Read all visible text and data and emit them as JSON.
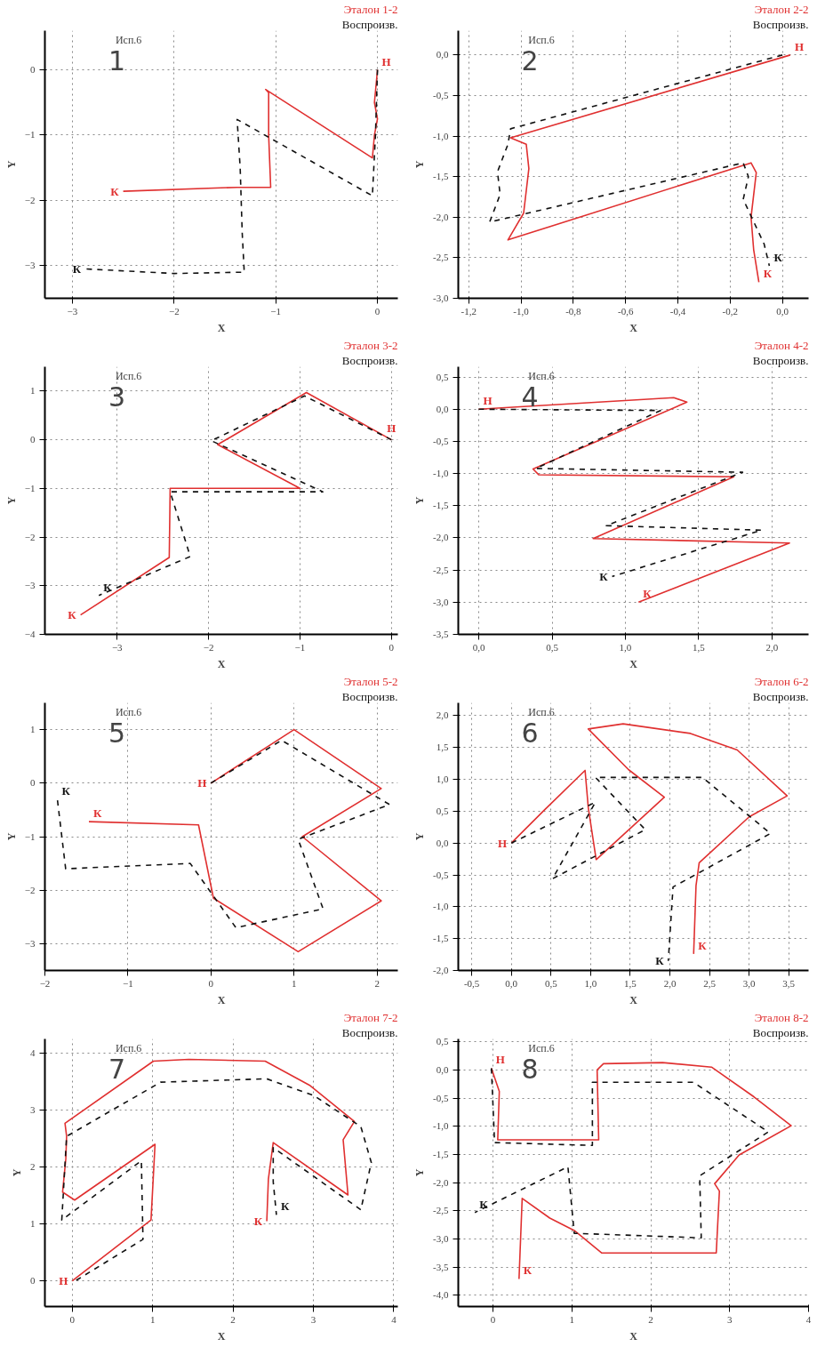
{
  "chart_data": [
    {
      "type": "line",
      "xlabel": "X",
      "ylabel": "Y",
      "xlim": [
        -3.27,
        0.2
      ],
      "ylim": [
        -3.5,
        0.6
      ],
      "xticks": [
        -3,
        -2,
        -1,
        0
      ],
      "yticks": [
        0,
        -1,
        -2,
        -3
      ],
      "grid": true,
      "legend": "top right",
      "marker": "none",
      "series": [
        {
          "name": "Эталон 1-2",
          "color": "#e03030",
          "line_style": "solid",
          "x": [
            0,
            -0.03,
            0.0,
            -0.03,
            -0.05,
            -1.1,
            -1.07,
            -1.07,
            -1.05,
            -1.38,
            -2.5
          ],
          "values": [
            0,
            -0.5,
            -0.75,
            -1.0,
            -1.35,
            -0.3,
            -0.35,
            -1.0,
            -1.8,
            -1.8,
            -1.86
          ]
        },
        {
          "name": "Воспроизв.",
          "color": "#111111",
          "line_style": "dashed",
          "x": [
            0,
            -0.02,
            -0.05,
            -1.38,
            -1.35,
            -1.33,
            -1.31,
            -2.0,
            -2.87
          ],
          "values": [
            0,
            -1.0,
            -1.93,
            -0.76,
            -1.5,
            -2.5,
            -3.1,
            -3.12,
            -3.05
          ]
        }
      ],
      "annotations": [
        "Исп.6",
        "1",
        {
          "text": "Н",
          "x": 0,
          "y": 0
        },
        {
          "text": "К",
          "x": -2.5,
          "y": -1.86
        },
        {
          "text": "К",
          "x": -2.87,
          "y": -3.05
        }
      ]
    },
    {
      "type": "line",
      "xlabel": "X",
      "ylabel": "Y",
      "xlim": [
        -1.24,
        0.1
      ],
      "ylim": [
        -3.0,
        0.3
      ],
      "xticks": [
        {
          "value": -1.2,
          "label": "-1,2"
        },
        {
          "value": -1.0,
          "label": "-1,0"
        },
        {
          "value": -0.8,
          "label": "-0,8"
        },
        {
          "value": -0.6,
          "label": "-0,6"
        },
        {
          "value": -0.4,
          "label": "-0,4"
        },
        {
          "value": -0.2,
          "label": "-0,2"
        },
        {
          "value": 0,
          "label": "0,0"
        }
      ],
      "yticks": [
        {
          "value": 0,
          "label": "0,0"
        },
        {
          "value": -0.5,
          "label": "-0,5"
        },
        {
          "value": -1.0,
          "label": "-1,0"
        },
        {
          "value": -1.5,
          "label": "-1,5"
        },
        {
          "value": -2.0,
          "label": "-2,0"
        },
        {
          "value": -2.5,
          "label": "-2,5"
        },
        {
          "value": -3.0,
          "label": "-3,0"
        }
      ],
      "grid": true,
      "legend": "top right",
      "marker": "none",
      "series": [
        {
          "name": "Эталон 2-2",
          "color": "#e03030",
          "line_style": "solid",
          "x": [
            0.03,
            -1.04,
            -0.98,
            -0.97,
            -0.99,
            -1.05,
            -0.12,
            -0.1,
            -0.12,
            -0.11,
            -0.09
          ],
          "values": [
            0,
            -1.02,
            -1.1,
            -1.4,
            -1.95,
            -2.28,
            -1.33,
            -1.45,
            -2.0,
            -2.4,
            -2.8
          ]
        },
        {
          "name": "Воспроизв.",
          "color": "#111111",
          "line_style": "dashed",
          "x": [
            0.0,
            -1.04,
            -1.05,
            -1.09,
            -1.08,
            -1.12,
            -0.15,
            -0.13,
            -0.15,
            -0.07,
            -0.05
          ],
          "values": [
            0,
            -0.91,
            -1.1,
            -1.44,
            -1.72,
            -2.06,
            -1.33,
            -1.5,
            -1.78,
            -2.33,
            -2.6
          ]
        }
      ],
      "annotations": [
        "Исп.6",
        "2",
        {
          "text": "Н",
          "x": 0.03,
          "y": 0
        },
        {
          "text": "К",
          "x": -0.09,
          "y": -2.8
        },
        {
          "text": "К",
          "x": -0.05,
          "y": -2.6
        }
      ]
    },
    {
      "type": "line",
      "xlabel": "X",
      "ylabel": "Y",
      "xlim": [
        -3.79,
        0.07
      ],
      "ylim": [
        -4,
        1.5
      ],
      "xticks": [
        -3,
        -2,
        -1,
        0
      ],
      "yticks": [
        1,
        0,
        -1,
        -2,
        -3,
        -4
      ],
      "grid": true,
      "legend": "top right",
      "marker": "none",
      "series": [
        {
          "name": "Эталон 3-2",
          "color": "#e03030",
          "line_style": "solid",
          "x": [
            0,
            -0.93,
            -1.9,
            -1.0,
            -2.42,
            -2.43,
            -3.4
          ],
          "values": [
            0,
            0.97,
            -0.1,
            -1.0,
            -1.0,
            -2.42,
            -3.6
          ]
        },
        {
          "name": "Воспроизв.",
          "color": "#111111",
          "line_style": "dashed",
          "x": [
            0,
            -0.95,
            -1.97,
            -0.75,
            -2.42,
            -2.2,
            -3.2
          ],
          "values": [
            0,
            0.9,
            -0.02,
            -1.07,
            -1.07,
            -2.4,
            -3.2
          ]
        }
      ],
      "annotations": [
        "Исп.6",
        "3",
        {
          "text": "Н",
          "x": 0,
          "y": 0
        },
        {
          "text": "К",
          "x": -3.4,
          "y": -3.6
        },
        {
          "text": "К",
          "x": -3.2,
          "y": -3.2
        }
      ]
    },
    {
      "type": "line",
      "xlabel": "X",
      "ylabel": "Y",
      "xlim": [
        -0.14,
        2.25
      ],
      "ylim": [
        -3.5,
        0.66
      ],
      "xticks": [
        {
          "value": 0,
          "label": "0,0"
        },
        {
          "value": 0.5,
          "label": "0,5"
        },
        {
          "value": 1.0,
          "label": "1,0"
        },
        {
          "value": 1.5,
          "label": "1,5"
        },
        {
          "value": 2.0,
          "label": "2,0"
        }
      ],
      "yticks": [
        {
          "value": 0.5,
          "label": "0,5"
        },
        {
          "value": 0,
          "label": "0,0"
        },
        {
          "value": -0.5,
          "label": "-0,5"
        },
        {
          "value": -1.0,
          "label": "-1,0"
        },
        {
          "value": -1.5,
          "label": "-1,5"
        },
        {
          "value": -2.0,
          "label": "-2,0"
        },
        {
          "value": -2.5,
          "label": "-2,5"
        },
        {
          "value": -3.0,
          "label": "-3,0"
        },
        {
          "value": -3.5,
          "label": "-3,5"
        }
      ],
      "grid": true,
      "legend": "top right",
      "marker": "none",
      "series": [
        {
          "name": "Эталон 4-2",
          "color": "#e03030",
          "line_style": "solid",
          "x": [
            0,
            1.33,
            1.42,
            0.37,
            0.41,
            1.74,
            0.78,
            2.12,
            1.09
          ],
          "values": [
            0,
            0.18,
            0.11,
            -0.93,
            -1.02,
            -1.05,
            -2.01,
            -2.08,
            -3.0
          ]
        },
        {
          "name": "Воспроизв.",
          "color": "#111111",
          "line_style": "dashed",
          "x": [
            0,
            1.24,
            0.39,
            1.8,
            0.87,
            1.93,
            0.91
          ],
          "values": [
            0,
            -0.02,
            -0.92,
            -0.98,
            -1.81,
            -1.88,
            -2.6
          ]
        }
      ],
      "annotations": [
        "Исп.6",
        "4",
        {
          "text": "Н",
          "x": 0,
          "y": 0
        },
        {
          "text": "К",
          "x": 1.09,
          "y": -3.0
        },
        {
          "text": "К",
          "x": 0.91,
          "y": -2.6
        }
      ]
    },
    {
      "type": "line",
      "xlabel": "X",
      "ylabel": "Y",
      "xlim": [
        -2,
        2.25
      ],
      "ylim": [
        -3.5,
        1.5
      ],
      "xticks": [
        -2,
        -1,
        0,
        1,
        2
      ],
      "yticks": [
        1,
        0,
        -1,
        -2,
        -3
      ],
      "grid": true,
      "legend": "top right",
      "marker": "none",
      "series": [
        {
          "name": "Эталон 5-2",
          "color": "#e03030",
          "line_style": "solid",
          "x": [
            0,
            1.0,
            2.05,
            1.1,
            2.05,
            1.05,
            0.03,
            -0.15,
            -1.47
          ],
          "values": [
            0,
            1.0,
            -0.1,
            -1.0,
            -2.2,
            -3.15,
            -2.15,
            -0.78,
            -0.72
          ]
        },
        {
          "name": "Воспроизв.",
          "color": "#111111",
          "line_style": "dashed",
          "x": [
            0,
            0.85,
            2.15,
            1.05,
            1.35,
            0.3,
            -0.25,
            -1.75,
            -1.85
          ],
          "values": [
            0,
            0.8,
            -0.4,
            -1.05,
            -2.35,
            -2.7,
            -1.5,
            -1.6,
            -0.3
          ]
        }
      ],
      "annotations": [
        "Исп.6",
        "5",
        {
          "text": "Н",
          "x": 0,
          "y": 0
        },
        {
          "text": "К",
          "x": -1.47,
          "y": -0.72
        },
        {
          "text": "К",
          "x": -1.85,
          "y": -0.3
        }
      ]
    },
    {
      "type": "line",
      "xlabel": "X",
      "ylabel": "Y",
      "xlim": [
        -0.67,
        3.75
      ],
      "ylim": [
        -2.0,
        2.2
      ],
      "xticks": [
        {
          "value": -0.5,
          "label": "-0,5"
        },
        {
          "value": 0,
          "label": "0,0"
        },
        {
          "value": 0.5,
          "label": "0,5"
        },
        {
          "value": 1.0,
          "label": "1,0"
        },
        {
          "value": 1.5,
          "label": "1,5"
        },
        {
          "value": 2.0,
          "label": "2,0"
        },
        {
          "value": 2.5,
          "label": "2,5"
        },
        {
          "value": 3.0,
          "label": "3,0"
        },
        {
          "value": 3.5,
          "label": "3,5"
        }
      ],
      "yticks": [
        {
          "value": 2.0,
          "label": "2,0"
        },
        {
          "value": 1.5,
          "label": "1,5"
        },
        {
          "value": 1.0,
          "label": "1,0"
        },
        {
          "value": 0.5,
          "label": "0,5"
        },
        {
          "value": 0,
          "label": "0,0"
        },
        {
          "value": -0.5,
          "label": "-0,5"
        },
        {
          "value": -1.0,
          "label": "-1,0"
        },
        {
          "value": -1.5,
          "label": "-1,5"
        },
        {
          "value": -2.0,
          "label": "-2,0"
        }
      ],
      "grid": true,
      "legend": "top right",
      "marker": "none",
      "series": [
        {
          "name": "Эталон 6-2",
          "color": "#e03030",
          "line_style": "solid",
          "x": [
            0,
            0.41,
            0.93,
            0.97,
            1.07,
            1.93,
            1.48,
            0.97,
            1.41,
            2.26,
            2.85,
            3.48,
            3.0,
            2.37,
            2.33,
            2.3
          ],
          "values": [
            0,
            0.51,
            1.14,
            0.56,
            -0.26,
            0.72,
            1.15,
            1.79,
            1.87,
            1.72,
            1.46,
            0.74,
            0.41,
            -0.31,
            -0.67,
            -1.74
          ]
        },
        {
          "name": "Воспроизв.",
          "color": "#111111",
          "line_style": "dashed",
          "x": [
            0,
            1.06,
            0.52,
            1.69,
            1.06,
            2.41,
            3.27,
            2.04,
            1.98
          ],
          "values": [
            0,
            0.64,
            -0.56,
            0.21,
            1.03,
            1.03,
            0.15,
            -0.69,
            -1.85
          ]
        }
      ],
      "annotations": [
        "Исп.6",
        "6",
        {
          "text": "Н",
          "x": 0,
          "y": 0
        },
        {
          "text": "К",
          "x": 2.3,
          "y": -1.74
        },
        {
          "text": "К",
          "x": 1.98,
          "y": -1.85
        }
      ]
    },
    {
      "type": "line",
      "xlabel": "X",
      "ylabel": "Y",
      "xlim": [
        -0.34,
        4.05
      ],
      "ylim": [
        -0.45,
        4.25
      ],
      "xticks": [
        0,
        1,
        2,
        3,
        4
      ],
      "yticks": [
        0,
        1,
        2,
        3,
        4
      ],
      "grid": true,
      "legend": "top right",
      "marker": "none",
      "series": [
        {
          "name": "Эталон 7-2",
          "color": "#e03030",
          "line_style": "solid",
          "x": [
            0,
            0.98,
            1.03,
            0.03,
            -0.12,
            -0.08,
            -0.07,
            -0.09,
            1.01,
            1.45,
            2.4,
            2.96,
            3.51,
            3.37,
            3.43,
            2.5,
            2.44,
            2.42
          ],
          "values": [
            0,
            1.07,
            2.4,
            1.42,
            1.56,
            2.14,
            2.54,
            2.77,
            3.86,
            3.89,
            3.86,
            3.43,
            2.8,
            2.48,
            1.51,
            2.43,
            1.79,
            1.05
          ]
        },
        {
          "name": "Воспроизв.",
          "color": "#111111",
          "line_style": "dashed",
          "x": [
            0.05,
            0.88,
            0.86,
            -0.13,
            -0.07,
            1.1,
            2.42,
            3.0,
            3.59,
            3.72,
            3.59,
            2.5,
            2.5,
            2.54
          ],
          "values": [
            0.01,
            0.73,
            2.11,
            1.07,
            2.54,
            3.49,
            3.55,
            3.26,
            2.71,
            2.08,
            1.25,
            2.34,
            1.74,
            1.16
          ]
        }
      ],
      "annotations": [
        "Исп.6",
        "7",
        {
          "text": "Н",
          "x": 0,
          "y": 0
        },
        {
          "text": "К",
          "x": 2.42,
          "y": 1.05
        },
        {
          "text": "К",
          "x": 2.54,
          "y": 1.16
        }
      ]
    },
    {
      "type": "line",
      "xlabel": "X",
      "ylabel": "Y",
      "xlim": [
        -0.44,
        4.0
      ],
      "ylim": [
        -4.2,
        0.55
      ],
      "xticks": [
        0,
        1,
        2,
        3,
        4
      ],
      "yticks": [
        {
          "value": 0.5,
          "label": "0,5"
        },
        {
          "value": 0,
          "label": "0,0"
        },
        {
          "value": -0.5,
          "label": "-0,5"
        },
        {
          "value": -1.0,
          "label": "-1,0"
        },
        {
          "value": -1.5,
          "label": "-1,5"
        },
        {
          "value": -2.0,
          "label": "-2,0"
        },
        {
          "value": -2.5,
          "label": "-2,5"
        },
        {
          "value": -3.0,
          "label": "-3,0"
        },
        {
          "value": -3.5,
          "label": "-3,5"
        },
        {
          "value": -4.0,
          "label": "-4,0"
        }
      ],
      "grid": true,
      "legend": "top right",
      "marker": "none",
      "series": [
        {
          "name": "Эталон 8-2",
          "color": "#e03030",
          "line_style": "solid",
          "x": [
            -0.02,
            0.08,
            0.06,
            1.34,
            1.32,
            1.4,
            2.15,
            2.77,
            3.31,
            3.78,
            3.12,
            2.81,
            2.87,
            2.83,
            1.38,
            1.03,
            0.72,
            0.37,
            0.33
          ],
          "values": [
            0.03,
            -0.38,
            -1.24,
            -1.24,
            0.0,
            0.11,
            0.13,
            0.05,
            -0.48,
            -0.99,
            -1.51,
            -2.02,
            -2.15,
            -3.25,
            -3.25,
            -2.85,
            -2.63,
            -2.28,
            -3.71
          ]
        },
        {
          "name": "Воспроизв.",
          "color": "#111111",
          "line_style": "dashed",
          "x": [
            -0.02,
            0.02,
            1.26,
            1.26,
            2.54,
            3.49,
            2.62,
            2.64,
            1.03,
            0.95,
            -0.23
          ],
          "values": [
            0.03,
            -1.29,
            -1.34,
            -0.22,
            -0.22,
            -1.1,
            -1.88,
            -2.98,
            -2.9,
            -1.72,
            -2.53
          ]
        }
      ],
      "annotations": [
        "Исп.6",
        "8",
        {
          "text": "Н",
          "x": -0.02,
          "y": 0.03
        },
        {
          "text": "К",
          "x": 0.33,
          "y": -3.71
        },
        {
          "text": "К",
          "x": -0.23,
          "y": -2.53
        }
      ]
    }
  ]
}
